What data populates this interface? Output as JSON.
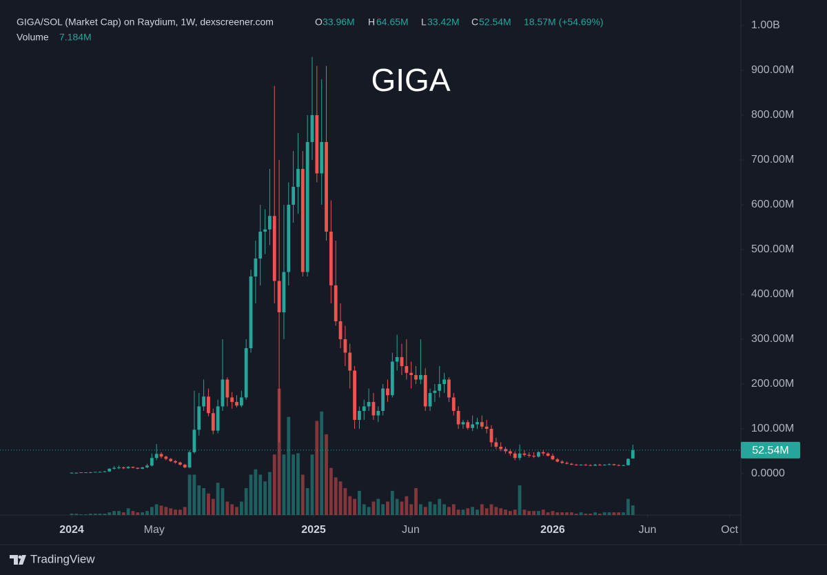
{
  "chart_data": {
    "type": "candlestick",
    "title": "GIGA",
    "header": {
      "symbol": "GIGA/SOL (Market Cap) on Raydium, 1W, dexscreener.com",
      "ohlc": [
        {
          "key": "O",
          "value": "33.96M"
        },
        {
          "key": "H",
          "value": "64.65M"
        },
        {
          "key": "L",
          "value": "33.42M"
        },
        {
          "key": "C",
          "value": "52.54M"
        }
      ],
      "change": "18.57M (+54.69%)",
      "volume_key": "Volume",
      "volume_value": "7.184M"
    },
    "last_price_label": "52.54M",
    "footer": "TradingView",
    "up_color": "#26a69a",
    "down_color": "#ef5350",
    "open": [
      2,
      2,
      2,
      3,
      3,
      3,
      4,
      4,
      5,
      11,
      13,
      14,
      12,
      15,
      13,
      11,
      14,
      18,
      35,
      44,
      38,
      33,
      28,
      25,
      20,
      14,
      48,
      98,
      150,
      172,
      135,
      96,
      150,
      210,
      170,
      160,
      152,
      170,
      280,
      440,
      480,
      540,
      545,
      575,
      430,
      360,
      450,
      600,
      640,
      680,
      450,
      740,
      800,
      670,
      740,
      540,
      420,
      340,
      300,
      270,
      230,
      120,
      140,
      150,
      160,
      130,
      140,
      190,
      175,
      250,
      260,
      240,
      225,
      220,
      210,
      220,
      150,
      180,
      185,
      200,
      210,
      170,
      140,
      110,
      115,
      102,
      110,
      115,
      105,
      100,
      70,
      60,
      55,
      50,
      45,
      35,
      45,
      42,
      40,
      38,
      48,
      45,
      40,
      32,
      27,
      24,
      22,
      20,
      19,
      20,
      19,
      18,
      20,
      19,
      20,
      21,
      19,
      18,
      19,
      33.96
    ],
    "high": [
      3,
      3,
      3,
      3,
      4,
      4,
      5,
      6,
      12,
      17,
      18,
      16,
      17,
      16,
      14,
      15,
      22,
      45,
      66,
      48,
      40,
      35,
      30,
      27,
      22,
      52,
      185,
      180,
      210,
      190,
      145,
      165,
      300,
      215,
      182,
      175,
      185,
      300,
      455,
      520,
      600,
      590,
      680,
      865,
      700,
      600,
      650,
      720,
      760,
      720,
      800,
      930,
      910,
      880,
      910,
      610,
      520,
      380,
      330,
      290,
      240,
      150,
      165,
      190,
      180,
      150,
      200,
      210,
      270,
      310,
      290,
      300,
      250,
      240,
      300,
      235,
      190,
      200,
      240,
      225,
      215,
      180,
      150,
      120,
      120,
      130,
      125,
      130,
      120,
      108,
      80,
      70,
      60,
      55,
      50,
      65,
      52,
      48,
      48,
      50,
      52,
      48,
      45,
      35,
      30,
      27,
      24,
      22,
      21,
      22,
      21,
      22,
      22,
      21,
      23,
      22,
      21,
      20,
      34,
      64.65
    ],
    "low": [
      1,
      2,
      2,
      2,
      2,
      3,
      3,
      3,
      4,
      9,
      10,
      10,
      11,
      12,
      10,
      10,
      12,
      16,
      30,
      34,
      30,
      26,
      22,
      18,
      12,
      12,
      45,
      85,
      140,
      128,
      88,
      90,
      140,
      150,
      145,
      148,
      148,
      165,
      270,
      380,
      420,
      490,
      510,
      380,
      70,
      300,
      420,
      560,
      580,
      440,
      440,
      700,
      650,
      600,
      520,
      380,
      330,
      280,
      240,
      190,
      100,
      100,
      120,
      140,
      120,
      115,
      130,
      160,
      170,
      230,
      220,
      210,
      190,
      200,
      200,
      140,
      140,
      160,
      170,
      180,
      160,
      130,
      100,
      100,
      98,
      95,
      100,
      100,
      90,
      60,
      55,
      50,
      45,
      40,
      30,
      30,
      38,
      36,
      35,
      36,
      40,
      38,
      30,
      25,
      22,
      21,
      19,
      18,
      18,
      18,
      17,
      17,
      18,
      18,
      19,
      18,
      17,
      17,
      18,
      33.42
    ],
    "close": [
      2,
      2,
      3,
      3,
      3,
      4,
      4,
      5,
      11,
      13,
      14,
      12,
      15,
      13,
      11,
      14,
      18,
      35,
      44,
      38,
      33,
      28,
      25,
      20,
      14,
      48,
      98,
      150,
      172,
      135,
      96,
      150,
      210,
      170,
      160,
      152,
      170,
      280,
      440,
      480,
      540,
      545,
      575,
      430,
      360,
      450,
      600,
      640,
      680,
      450,
      740,
      800,
      670,
      740,
      540,
      420,
      340,
      300,
      270,
      230,
      120,
      140,
      150,
      160,
      130,
      140,
      190,
      175,
      250,
      260,
      240,
      225,
      220,
      210,
      220,
      150,
      180,
      185,
      200,
      210,
      170,
      140,
      110,
      115,
      102,
      110,
      115,
      105,
      100,
      70,
      60,
      55,
      50,
      45,
      35,
      45,
      42,
      40,
      38,
      48,
      45,
      40,
      32,
      27,
      24,
      22,
      20,
      19,
      20,
      19,
      18,
      20,
      19,
      20,
      21,
      19,
      18,
      19,
      33,
      52.54
    ],
    "volume": [
      1,
      1,
      0.5,
      0.5,
      1,
      1,
      1,
      1,
      2,
      3,
      3,
      2,
      5,
      3,
      2,
      2,
      3,
      6,
      8,
      7,
      6,
      5,
      4,
      4,
      6,
      30,
      30,
      22,
      20,
      16,
      12,
      24,
      20,
      10,
      8,
      6,
      10,
      20,
      30,
      34,
      30,
      25,
      32,
      45,
      94,
      45,
      73,
      45,
      46,
      30,
      20,
      45,
      70,
      77,
      60,
      35,
      28,
      25,
      20,
      14,
      12,
      18,
      8,
      6,
      10,
      12,
      8,
      10,
      18,
      12,
      10,
      14,
      8,
      20,
      8,
      6,
      10,
      8,
      12,
      8,
      6,
      8,
      4,
      4,
      5,
      6,
      4,
      8,
      5,
      8,
      6,
      5,
      4,
      3,
      4,
      22,
      4,
      3,
      3,
      3,
      4,
      2,
      3,
      2,
      2,
      2,
      2,
      1,
      2,
      1,
      1,
      2,
      1,
      2,
      2,
      2,
      2,
      2,
      12,
      7.184
    ],
    "ylim": [
      -92.3,
      1056.9
    ],
    "yticks": [
      {
        "value": 0,
        "label": "0.0000"
      },
      {
        "value": 100,
        "label": "100.00M"
      },
      {
        "value": 200,
        "label": "200.00M"
      },
      {
        "value": 300,
        "label": "300.00M"
      },
      {
        "value": 400,
        "label": "400.00M"
      },
      {
        "value": 500,
        "label": "500.00M"
      },
      {
        "value": 600,
        "label": "600.00M"
      },
      {
        "value": 700,
        "label": "700.00M"
      },
      {
        "value": 800,
        "label": "800.00M"
      },
      {
        "value": 900,
        "label": "900.00M"
      },
      {
        "value": 1000,
        "label": "1.00B"
      }
    ],
    "volume_lim": [
      0,
      383
    ],
    "xlim": [
      -15.2,
      141.9
    ],
    "xticks": [
      {
        "value": 0,
        "label": "2024"
      },
      {
        "value": 17.5,
        "label": "May"
      },
      {
        "value": 51.3,
        "label": "2025"
      },
      {
        "value": 71.9,
        "label": "Jun"
      },
      {
        "value": 102,
        "label": "2026"
      },
      {
        "value": 122.1,
        "label": "Jun"
      },
      {
        "value": 139.5,
        "label": "Oct"
      }
    ]
  }
}
